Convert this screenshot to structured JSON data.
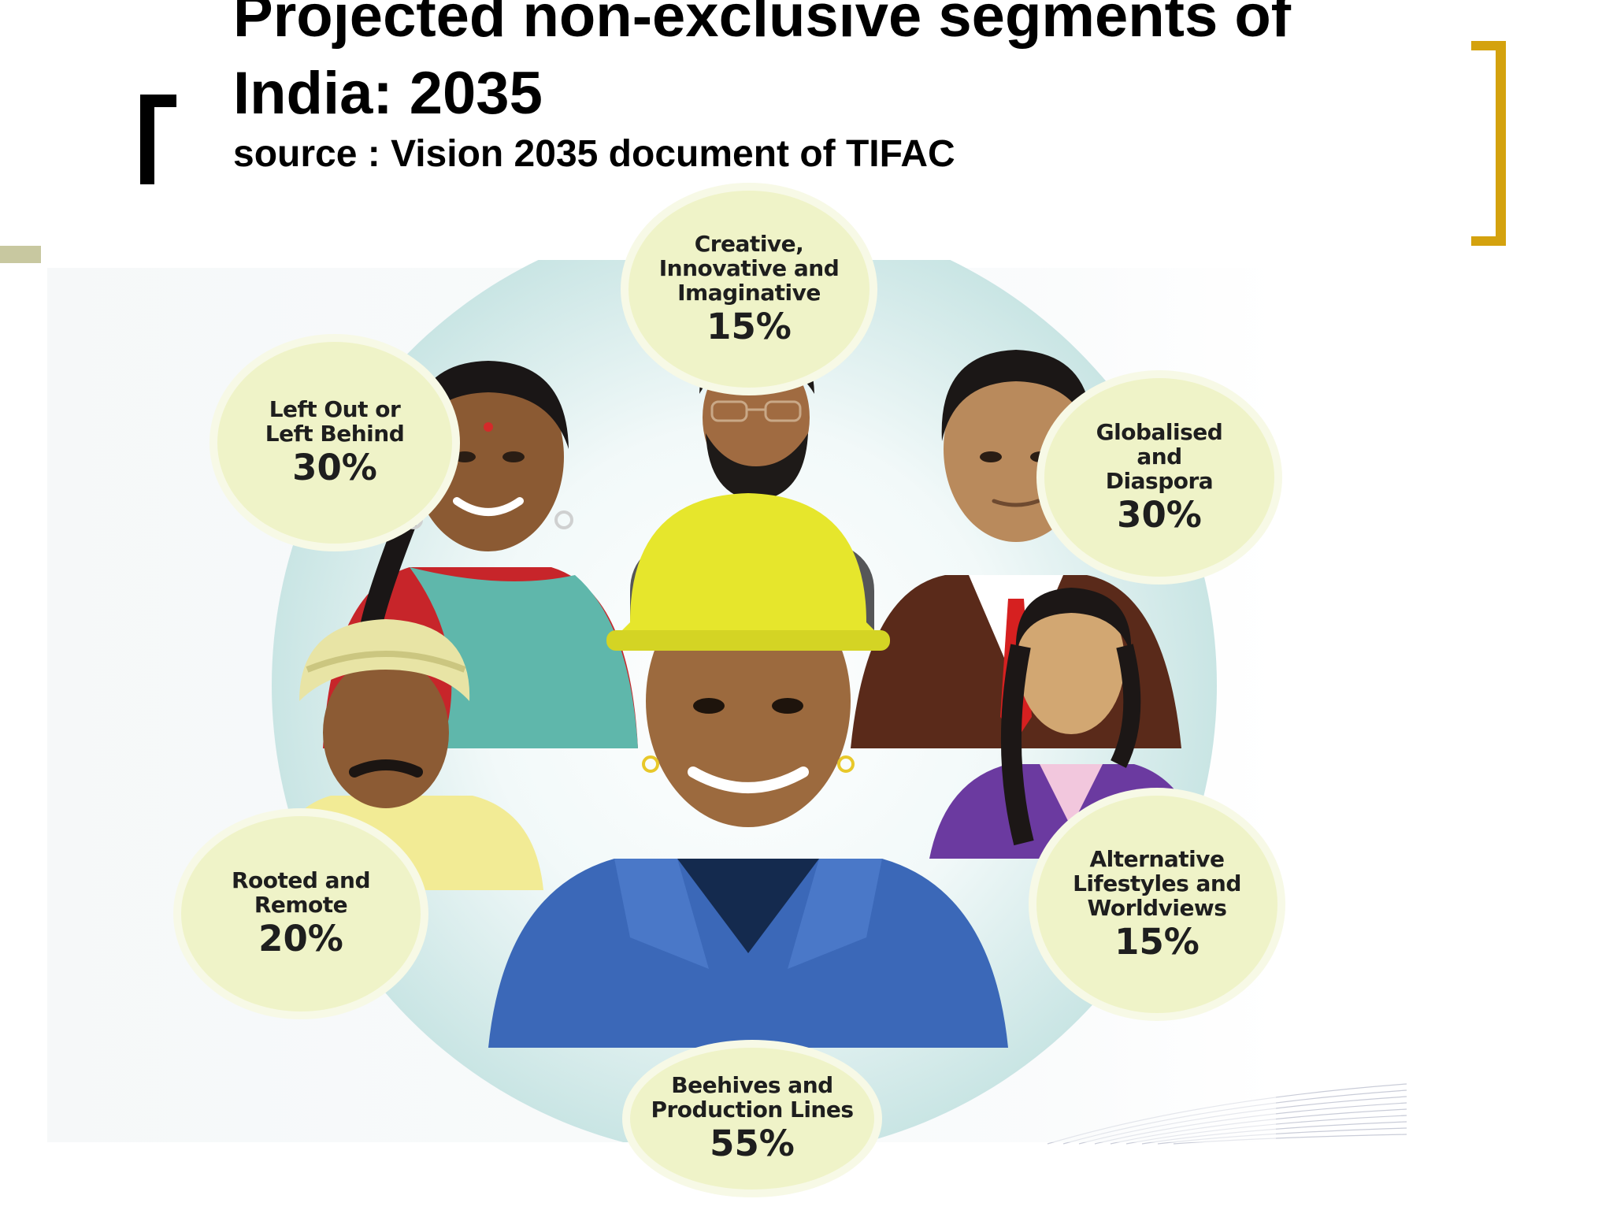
{
  "slide": {
    "title": "Projected non-exclusive segments of India: 2035",
    "subtitle": "source : Vision 2035 document of TIFAC"
  },
  "colors": {
    "bracket_left": "#000000",
    "bracket_right": "#d4a20e",
    "side_bar": "#c8c8a0",
    "bubble_fill": "#eff3c8",
    "circle_fill": "#cde7e6"
  },
  "diagram": {
    "segments": [
      {
        "id": "creative",
        "label": "Creative,\nInnovative and\nImaginative",
        "percent": "15%"
      },
      {
        "id": "left-out",
        "label": "Left Out or\nLeft Behind",
        "percent": "30%"
      },
      {
        "id": "globalised",
        "label": "Globalised\nand\nDiaspora",
        "percent": "30%"
      },
      {
        "id": "rooted",
        "label": "Rooted and\nRemote",
        "percent": "20%"
      },
      {
        "id": "alternative",
        "label": "Alternative\nLifestyles and\nWorldviews",
        "percent": "15%"
      },
      {
        "id": "beehives",
        "label": "Beehives and\nProduction Lines",
        "percent": "55%"
      }
    ],
    "figures": [
      {
        "id": "bearded-man",
        "icon": "person-illustration"
      },
      {
        "id": "woman-sari",
        "icon": "person-illustration"
      },
      {
        "id": "man-suit",
        "icon": "person-illustration"
      },
      {
        "id": "turban-man",
        "icon": "person-illustration"
      },
      {
        "id": "young-woman",
        "icon": "person-illustration"
      },
      {
        "id": "worker-hardhat",
        "icon": "person-illustration"
      }
    ]
  }
}
